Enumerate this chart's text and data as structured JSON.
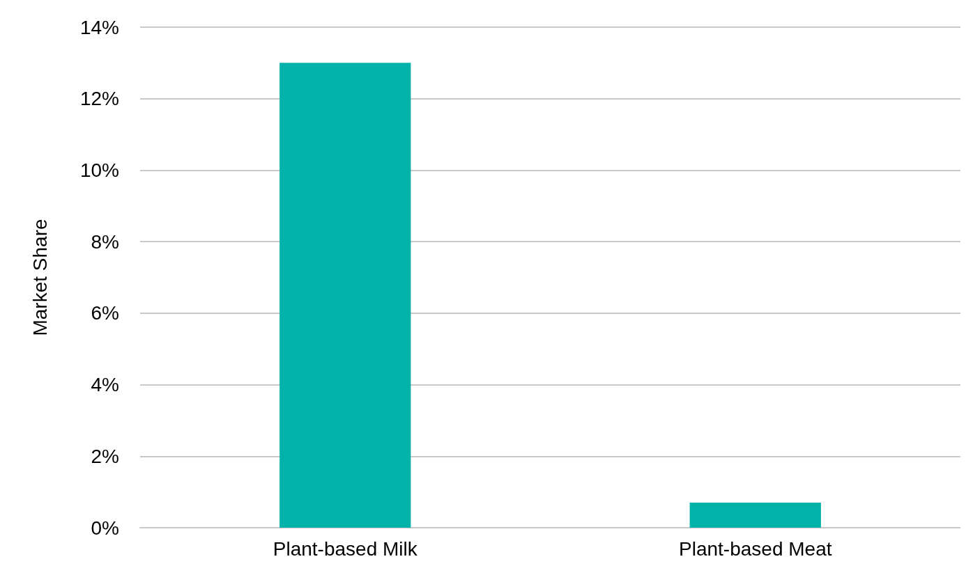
{
  "chart_data": {
    "type": "bar",
    "ylabel": "Market Share",
    "categories": [
      "Plant-based Milk",
      "Plant-based Meat"
    ],
    "values": [
      13,
      0.7
    ],
    "color": "#00b2a9",
    "ylim": [
      0,
      14
    ],
    "yticks": [
      {
        "value": 0,
        "label": "0%"
      },
      {
        "value": 2,
        "label": "2%"
      },
      {
        "value": 4,
        "label": "4%"
      },
      {
        "value": 6,
        "label": "6%"
      },
      {
        "value": 8,
        "label": "8%"
      },
      {
        "value": 10,
        "label": "10%"
      },
      {
        "value": 12,
        "label": "12%"
      },
      {
        "value": 14,
        "label": "14%"
      }
    ],
    "grid": true
  }
}
